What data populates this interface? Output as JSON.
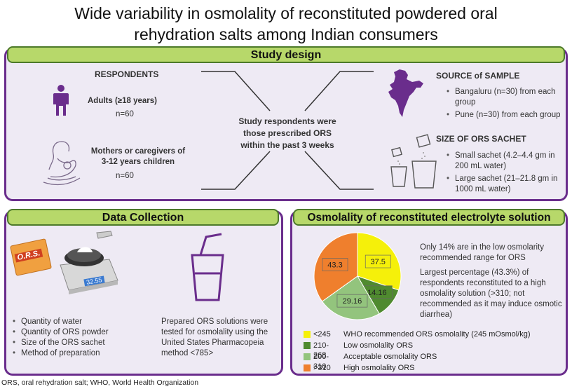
{
  "title": {
    "line1": "Wide variability in osmolality of reconstituted powdered oral",
    "line2": "rehydration salts among Indian consumers"
  },
  "study_design": {
    "header": "Study design",
    "respondents_title": "RESPONDENTS",
    "adults_label": "Adults (≥18 years)",
    "adults_n": "n=60",
    "mothers_label_1": "Mothers or caregivers of",
    "mothers_label_2": "3-12 years children",
    "mothers_n": "n=60",
    "center_text_1": "Study respondents were",
    "center_text_2": "those prescribed ORS",
    "center_text_3": "within the past 3 weeks",
    "source_title": "SOURCE of SAMPLE",
    "source_items": [
      "Bangaluru (n=30) from each group",
      "Pune (n=30) from each group"
    ],
    "sachet_title": "SIZE OF ORS SACHET",
    "sachet_items": [
      "Small sachet (4.2–4.4 gm in 200 mL water)",
      "Large sachet (21–21.8 gm in 1000 mL water)"
    ]
  },
  "data_collection": {
    "header": "Data Collection",
    "sachet_logo": "O.R.S.",
    "scale_display": "32.55",
    "items": [
      "Quantity of water",
      "Quantity of ORS powder",
      "Size of the ORS sachet",
      "Method of preparation"
    ],
    "method_text": "Prepared ORS solutions were tested for osmolality using the United States Pharmacopeia method <785>"
  },
  "osmolality": {
    "header": "Osmolality of reconstituted electrolyte solution",
    "text1": "Only 14% are in the low osmolarity recommended range for ORS",
    "text2": "Largest percentage (43.3%) of respondents reconstituted to a high osmolality solution (>310; not recommended as it may induce osmotic diarrhea)"
  },
  "chart_data": {
    "type": "pie",
    "slices": [
      {
        "label": "37.5",
        "value": 37.5,
        "color": "#f5f00a",
        "range": "<245",
        "description": "WHO recommended ORS osmolality (245 mOsmol/kg)"
      },
      {
        "label": "14.16",
        "value": 14.16,
        "color": "#4f8a2f",
        "range": "210-268",
        "description": "Low osmolality ORS"
      },
      {
        "label": "29.16",
        "value": 29.16,
        "color": "#93c47d",
        "range": "200-310",
        "description": "Acceptable osmolality ORS"
      },
      {
        "label": "43.3",
        "value": 43.3,
        "color": "#ef7f2d",
        "range": ">310",
        "description": "High osmolality ORS"
      }
    ]
  },
  "footnote": "ORS, oral rehydration salt; WHO, World Health Organization"
}
